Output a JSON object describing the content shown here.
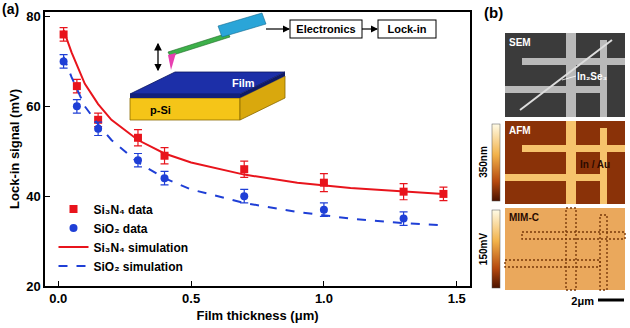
{
  "panel_label": "(a)",
  "chart_data": {
    "type": "scatter",
    "xlabel": "Film thickness (μm)",
    "ylabel": "Lock-in signal (mV)",
    "xlim": [
      -0.05,
      1.55
    ],
    "xticks": [
      {
        "value": 0,
        "label": "0.0"
      },
      0.5,
      {
        "value": 1,
        "label": "1.0"
      },
      1.5
    ],
    "ylim": [
      20,
      81
    ],
    "yticks": [
      20,
      40,
      60,
      80
    ],
    "grid": false,
    "legend": "lower left",
    "series": [
      {
        "name": "Si₃N₄ data",
        "type": "scatter",
        "marker": "square",
        "color": "#e8141c",
        "x": [
          0.02,
          0.07,
          0.15,
          0.3,
          0.4,
          0.7,
          1.0,
          1.3,
          1.45
        ],
        "values": [
          76,
          64.5,
          57,
          53,
          49,
          46,
          43,
          41,
          40.5
        ],
        "errors": [
          1.5,
          1.5,
          1.5,
          1.8,
          1.8,
          1.8,
          2,
          1.8,
          1.5
        ]
      },
      {
        "name": "SiO₂ data",
        "type": "scatter",
        "marker": "circle",
        "color": "#1f3fd6",
        "x": [
          0.02,
          0.07,
          0.15,
          0.3,
          0.4,
          0.7,
          1.0,
          1.3
        ],
        "values": [
          70,
          60,
          55,
          48,
          44,
          40,
          37,
          35
        ],
        "errors": [
          1.5,
          1.5,
          1.5,
          1.5,
          1.5,
          1.5,
          1.5,
          1.5
        ]
      },
      {
        "name": "Si₃N₄ simulation",
        "type": "line",
        "line_style": "solid",
        "color": "#e8141c",
        "x": [
          0.02,
          0.05,
          0.1,
          0.15,
          0.2,
          0.3,
          0.4,
          0.5,
          0.7,
          0.9,
          1.1,
          1.3,
          1.45
        ],
        "values": [
          77,
          72,
          65,
          60.5,
          57,
          52.5,
          49.5,
          47.5,
          44.8,
          43,
          41.8,
          41,
          40.5
        ]
      },
      {
        "name": "SiO₂ simulation",
        "type": "line",
        "line_style": "dash",
        "color": "#1f3fd6",
        "x": [
          0.02,
          0.05,
          0.1,
          0.15,
          0.2,
          0.3,
          0.4,
          0.5,
          0.7,
          0.9,
          1.1,
          1.3,
          1.45
        ],
        "values": [
          71,
          66.5,
          60,
          56,
          52.5,
          47.5,
          44,
          41.5,
          38.5,
          36.5,
          35,
          34,
          33.5
        ]
      }
    ]
  },
  "inset": {
    "film_label": "Film",
    "substrate_label": "p-Si",
    "electronics_label": "Electronics",
    "lockin_label": "Lock-in"
  },
  "panel_b": {
    "label": "(b)",
    "images": [
      {
        "name": "SEM",
        "annotation": "In₂Se₃"
      },
      {
        "name": "AFM",
        "annotation": "In / Au",
        "colorbar_label": "350nm"
      },
      {
        "name": "MIM-C",
        "colorbar_label": "150mV",
        "scale_bar": "2μm"
      }
    ]
  }
}
